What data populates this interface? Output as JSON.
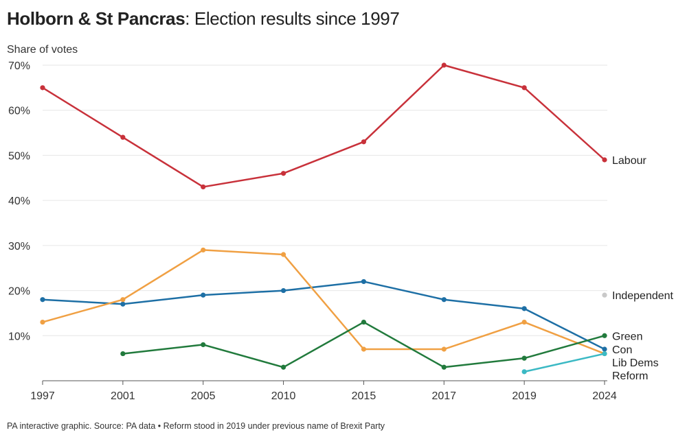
{
  "header": {
    "title_place": "Holborn & St Pancras",
    "title_rest": ": Election results since 1997"
  },
  "footer": {
    "source": "PA interactive graphic. Source: PA data • Reform stood in 2019 under previous name of Brexit Party"
  },
  "chart_data": {
    "type": "line",
    "title": "Holborn & St Pancras: Election results since 1997",
    "ylabel": "Share of votes",
    "xlabel": "",
    "categories": [
      "1997",
      "2001",
      "2005",
      "2010",
      "2015",
      "2017",
      "2019",
      "2024"
    ],
    "ylim": [
      0,
      70
    ],
    "yticks": [
      10,
      20,
      30,
      40,
      50,
      60,
      70
    ],
    "ytick_labels": [
      "10%",
      "20%",
      "30%",
      "40%",
      "50%",
      "60%",
      "70%"
    ],
    "grid": "horizontal",
    "legend": "direct labels at right end of lines",
    "series": [
      {
        "name": "Labour",
        "color": "#c8313a",
        "values": [
          65,
          54,
          43,
          46,
          53,
          70,
          65,
          49
        ]
      },
      {
        "name": "Con",
        "color": "#1d6fa5",
        "values": [
          18,
          17,
          19,
          20,
          22,
          18,
          16,
          7
        ]
      },
      {
        "name": "Lib Dems",
        "color": "#f0a043",
        "values": [
          13,
          18,
          29,
          28,
          7,
          7,
          13,
          6
        ]
      },
      {
        "name": "Green",
        "color": "#217a3c",
        "values": [
          null,
          6,
          8,
          3,
          13,
          3,
          5,
          10
        ]
      },
      {
        "name": "Reform",
        "color": "#3bb9c4",
        "values": [
          null,
          null,
          null,
          null,
          null,
          null,
          2,
          6
        ]
      },
      {
        "name": "Independent",
        "color": "#c9c9c9",
        "values": [
          null,
          null,
          null,
          null,
          null,
          null,
          null,
          19
        ]
      }
    ]
  }
}
